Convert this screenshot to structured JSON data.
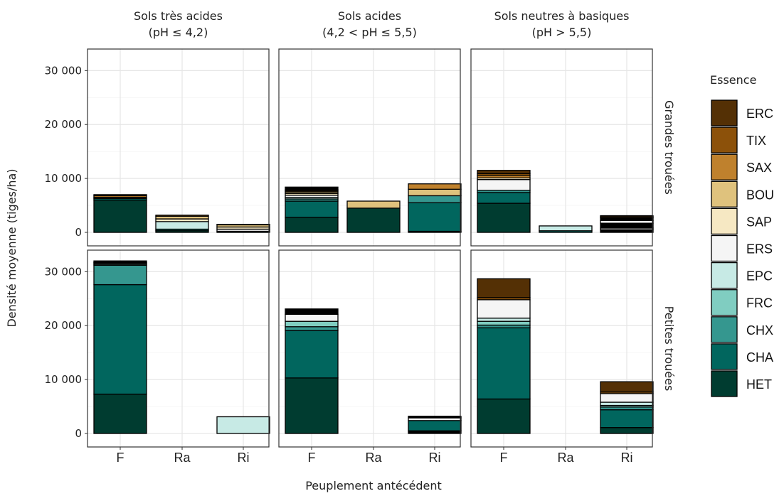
{
  "chart_data": {
    "type": "bar",
    "stacked": true,
    "facet_columns": [
      {
        "line1": "Sols très acides",
        "line2": "(pH ≤ 4,2)"
      },
      {
        "line1": "Sols acides",
        "line2": "(4,2 < pH ≤ 5,5)"
      },
      {
        "line1": "Sols neutres à basiques",
        "line2": "(pH > 5,5)"
      }
    ],
    "facet_rows": [
      "Grandes trouées",
      "Petites trouées"
    ],
    "categories": [
      "F",
      "Ra",
      "Ri"
    ],
    "xlabel": "Peuplement antécédent",
    "ylabel": "Densité moyenne (tiges/ha)",
    "ylim": [
      -2500,
      34000
    ],
    "yticks": [
      0,
      10000,
      20000,
      30000
    ],
    "ytick_labels": [
      "0",
      "10 000",
      "20 000",
      "30 000"
    ],
    "grid": true,
    "legend": {
      "title": "Essence",
      "position": "right",
      "items": [
        {
          "name": "ERC",
          "color": "#543005"
        },
        {
          "name": "TIX",
          "color": "#8C510A"
        },
        {
          "name": "SAX",
          "color": "#BF812D"
        },
        {
          "name": "BOU",
          "color": "#DFC27D"
        },
        {
          "name": "SAP",
          "color": "#F6E8C3"
        },
        {
          "name": "ERS",
          "color": "#F5F5F5"
        },
        {
          "name": "EPC",
          "color": "#C7EAE5"
        },
        {
          "name": "FRC",
          "color": "#80CDC1"
        },
        {
          "name": "CHX",
          "color": "#35978F"
        },
        {
          "name": "CHA",
          "color": "#01665E"
        },
        {
          "name": "HET",
          "color": "#003C30"
        }
      ]
    },
    "stack_order_bottom_to_top": [
      "HET",
      "CHA",
      "CHX",
      "FRC",
      "EPC",
      "ERS",
      "SAP",
      "BOU",
      "SAX",
      "TIX",
      "ERC"
    ],
    "extra_color": "#000000",
    "panels": [
      {
        "row": 0,
        "col": 0,
        "bars": [
          {
            "x": "F",
            "segments": [
              [
                "HET",
                6000
              ],
              [
                "CHA",
                300
              ],
              [
                "BOU",
                200
              ],
              [
                "SAX",
                300
              ],
              [
                "TIX",
                200
              ]
            ]
          },
          {
            "x": "Ra",
            "segments": [
              [
                "HET",
                300
              ],
              [
                "CHA",
                300
              ],
              [
                "EPC",
                1400
              ],
              [
                "SAP",
                500
              ],
              [
                "BOU",
                500
              ],
              [
                "SAX",
                200
              ]
            ]
          },
          {
            "x": "Ri",
            "segments": [
              [
                "HET",
                200
              ],
              [
                "ERS",
                400
              ],
              [
                "SAP",
                400
              ],
              [
                "BOU",
                400
              ],
              [
                "SAX",
                100
              ]
            ]
          }
        ]
      },
      {
        "row": 0,
        "col": 1,
        "bars": [
          {
            "x": "F",
            "segments": [
              [
                "HET",
                2800
              ],
              [
                "CHA",
                3000
              ],
              [
                "CHX",
                400
              ],
              [
                "EPC",
                300
              ],
              [
                "ERS",
                400
              ],
              [
                "SAP",
                300
              ],
              [
                "BOU",
                300
              ],
              [
                "SAX",
                200
              ],
              [
                "TIX",
                200
              ],
              [
                "",
                500
              ]
            ]
          },
          {
            "x": "Ra",
            "segments": [
              [
                "HET",
                4500
              ],
              [
                "BOU",
                1300
              ]
            ]
          },
          {
            "x": "Ri",
            "segments": [
              [
                "HET",
                200
              ],
              [
                "CHA",
                5300
              ],
              [
                "CHX",
                1300
              ],
              [
                "BOU",
                1200
              ],
              [
                "SAX",
                1000
              ]
            ]
          }
        ]
      },
      {
        "row": 0,
        "col": 2,
        "bars": [
          {
            "x": "F",
            "segments": [
              [
                "HET",
                5400
              ],
              [
                "CHA",
                2000
              ],
              [
                "CHX",
                400
              ],
              [
                "ERS",
                2000
              ],
              [
                "SAP",
                300
              ],
              [
                "SAX",
                500
              ],
              [
                "TIX",
                300
              ],
              [
                "ERC",
                600
              ]
            ]
          },
          {
            "x": "Ra",
            "segments": [
              [
                "CHA",
                300
              ],
              [
                "EPC",
                900
              ]
            ]
          },
          {
            "x": "Ri",
            "segments": [
              [
                "",
                500
              ],
              [
                "ERS",
                300
              ],
              [
                "",
                900
              ],
              [
                "ERS",
                500
              ],
              [
                "",
                500
              ],
              [
                "SAX",
                200
              ],
              [
                "ERC",
                200
              ]
            ]
          }
        ]
      },
      {
        "row": 1,
        "col": 0,
        "bars": [
          {
            "x": "F",
            "segments": [
              [
                "HET",
                7300
              ],
              [
                "CHA",
                20300
              ],
              [
                "CHX",
                3600
              ],
              [
                "FRC",
                200
              ],
              [
                "EPC",
                200
              ],
              [
                "ERS",
                100
              ],
              [
                "",
                300
              ]
            ]
          },
          {
            "x": "Ri",
            "segments": [
              [
                "EPC",
                3100
              ]
            ]
          }
        ]
      },
      {
        "row": 1,
        "col": 1,
        "bars": [
          {
            "x": "F",
            "segments": [
              [
                "HET",
                10300
              ],
              [
                "CHA",
                8800
              ],
              [
                "CHX",
                700
              ],
              [
                "FRC",
                1000
              ],
              [
                "ERS",
                1300
              ],
              [
                "",
                1000
              ]
            ]
          },
          {
            "x": "Ri",
            "segments": [
              [
                "",
                500
              ],
              [
                "CHA",
                1900
              ],
              [
                "ERS",
                500
              ],
              [
                "",
                300
              ]
            ]
          }
        ]
      },
      {
        "row": 1,
        "col": 2,
        "bars": [
          {
            "x": "F",
            "segments": [
              [
                "HET",
                6400
              ],
              [
                "CHA",
                13200
              ],
              [
                "CHX",
                500
              ],
              [
                "FRC",
                700
              ],
              [
                "EPC",
                600
              ],
              [
                "ERS",
                3400
              ],
              [
                "TIX",
                400
              ],
              [
                "ERC",
                3500
              ]
            ]
          },
          {
            "x": "Ri",
            "segments": [
              [
                "HET",
                1100
              ],
              [
                "CHA",
                3300
              ],
              [
                "CHX",
                500
              ],
              [
                "FRC",
                300
              ],
              [
                "EPC",
                600
              ],
              [
                "ERS",
                1600
              ],
              [
                "TIX",
                300
              ],
              [
                "ERC",
                1900
              ]
            ]
          }
        ]
      }
    ]
  }
}
